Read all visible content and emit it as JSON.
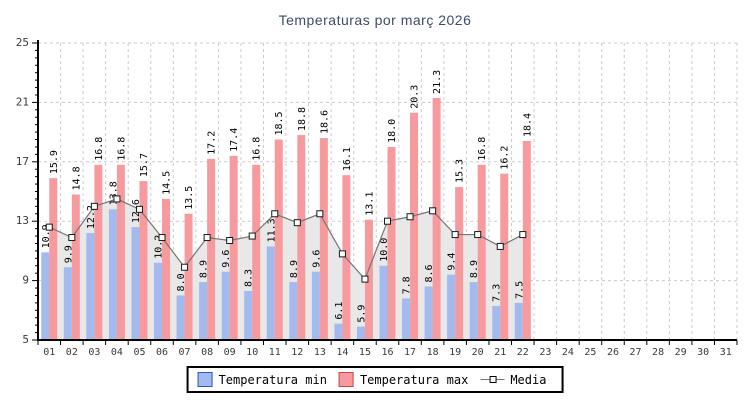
{
  "title": "Temperaturas por març 2026",
  "legend": {
    "min_label": "Temperatura min",
    "max_label": "Temperatura max",
    "media_label": "Media"
  },
  "colors": {
    "min_fill": "#a2baee",
    "min_swatch_border": "#2f52c4",
    "max_fill": "#f79a9e",
    "max_swatch_border": "#c64747",
    "media_line": "#757575",
    "media_area": "#e8e8e8",
    "marker_fill": "#ffffff",
    "marker_border": "#1a1a1a",
    "grid": "#cccccc",
    "axis": "#000000",
    "tick_label": "#3a3a3a",
    "value_label": "#000000",
    "title_color": "#3d4c6b"
  },
  "chart_data": {
    "type": "bar",
    "title": "Temperaturas por març 2026",
    "categories": [
      "01",
      "02",
      "03",
      "04",
      "05",
      "06",
      "07",
      "08",
      "09",
      "10",
      "11",
      "12",
      "13",
      "14",
      "15",
      "16",
      "17",
      "18",
      "19",
      "20",
      "21",
      "22",
      "23",
      "24",
      "25",
      "26",
      "27",
      "28",
      "29",
      "30",
      "31"
    ],
    "series": [
      {
        "name": "Temperatura min",
        "type": "bar",
        "values": [
          10.9,
          9.9,
          12.2,
          13.8,
          12.6,
          10.2,
          8.0,
          8.9,
          9.6,
          8.3,
          11.3,
          8.9,
          9.6,
          6.1,
          5.9,
          10.0,
          7.8,
          8.6,
          9.4,
          8.9,
          7.3,
          7.5,
          null,
          null,
          null,
          null,
          null,
          null,
          null,
          null,
          null
        ]
      },
      {
        "name": "Temperatura max",
        "type": "bar",
        "values": [
          15.9,
          14.8,
          16.8,
          16.8,
          15.7,
          14.5,
          13.5,
          17.2,
          17.4,
          16.8,
          18.5,
          18.8,
          18.6,
          16.1,
          13.1,
          18.0,
          20.3,
          21.3,
          15.3,
          16.8,
          16.2,
          18.4,
          null,
          null,
          null,
          null,
          null,
          null,
          null,
          null,
          null
        ]
      },
      {
        "name": "Media",
        "type": "line",
        "values": [
          12.6,
          11.9,
          14.0,
          14.5,
          13.8,
          11.9,
          9.9,
          11.9,
          11.7,
          12.0,
          13.5,
          12.9,
          13.5,
          10.8,
          9.1,
          13.0,
          13.3,
          13.7,
          12.1,
          12.1,
          11.3,
          12.1,
          null,
          null,
          null,
          null,
          null,
          null,
          null,
          null,
          null
        ]
      }
    ],
    "xlabel": "",
    "ylabel": "",
    "ylim": [
      5,
      25
    ],
    "yticks": [
      5,
      9,
      13,
      17,
      21,
      25
    ],
    "y_minor_step": 0.5,
    "grid": true,
    "grid_style": "dashed",
    "legend_position": "bottom",
    "bar_value_labels_rotated": true
  }
}
